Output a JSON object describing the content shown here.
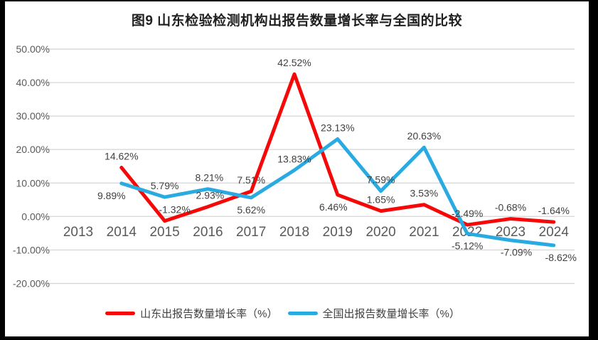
{
  "chart_data": {
    "type": "line",
    "title": "图9  山东检验检测机构出报告数量增长率与全国的比较",
    "categories": [
      "2013",
      "2014",
      "2015",
      "2016",
      "2017",
      "2018",
      "2019",
      "2020",
      "2021",
      "2022",
      "2023",
      "2024"
    ],
    "series": [
      {
        "name": "山东出报告数量增长率（%）",
        "color": "#f60808",
        "values": [
          null,
          14.62,
          -1.32,
          2.93,
          7.51,
          42.52,
          6.46,
          1.65,
          3.53,
          -2.49,
          -0.68,
          -1.64
        ],
        "data_labels": [
          null,
          "14.62%",
          "-1.32%",
          "2.93%",
          "7.51%",
          "42.52%",
          "6.46%",
          "1.65%",
          "3.53%",
          "-2.49%",
          "-0.68%",
          "-1.64%"
        ],
        "label_side": [
          null,
          "above",
          "above",
          "above",
          "above",
          "above",
          "below",
          "above",
          "above",
          "above",
          "above",
          "above"
        ],
        "label_dx": [
          0,
          0,
          14,
          3,
          0,
          0,
          -6,
          0,
          0,
          0,
          0,
          0
        ]
      },
      {
        "name": "全国出报告数量增长率（%）",
        "color": "#29abe2",
        "values": [
          null,
          9.89,
          5.79,
          8.21,
          5.62,
          13.83,
          23.13,
          7.59,
          20.63,
          -5.12,
          -7.09,
          -8.62
        ],
        "data_labels": [
          null,
          "9.89%",
          "5.79%",
          "8.21%",
          "5.62%",
          "13.83%",
          "23.13%",
          "7.59%",
          "20.63%",
          "-5.12%",
          "-7.09%",
          "-8.62%"
        ],
        "label_side": [
          null,
          "below",
          "above",
          "above",
          "below",
          "above",
          "above",
          "above",
          "above",
          "below",
          "below",
          "below"
        ],
        "label_dx": [
          0,
          -14,
          0,
          2,
          0,
          0,
          0,
          0,
          0,
          0,
          8,
          10
        ]
      }
    ],
    "y_axis": {
      "min": -20,
      "max": 50,
      "step": 10,
      "tick_labels": [
        "50.00%",
        "40.00%",
        "30.00%",
        "20.00%",
        "10.00%",
        "0.00%",
        "-10.00%",
        "-20.00%"
      ]
    },
    "x_axis": {
      "tick_labels": [
        "2013",
        "2014",
        "2015",
        "2016",
        "2017",
        "2018",
        "2019",
        "2020",
        "2021",
        "2022",
        "2023",
        "2024"
      ]
    },
    "grid": true,
    "legend_position": "bottom",
    "styles": {
      "grid_color": "#d9d9d9",
      "tick_label_color": "#595959",
      "x_label_color": "#595959",
      "data_label_color": "#404040",
      "title_color": "#1f1f1f",
      "background": "#ffffff",
      "frame_color": "#000000"
    }
  }
}
